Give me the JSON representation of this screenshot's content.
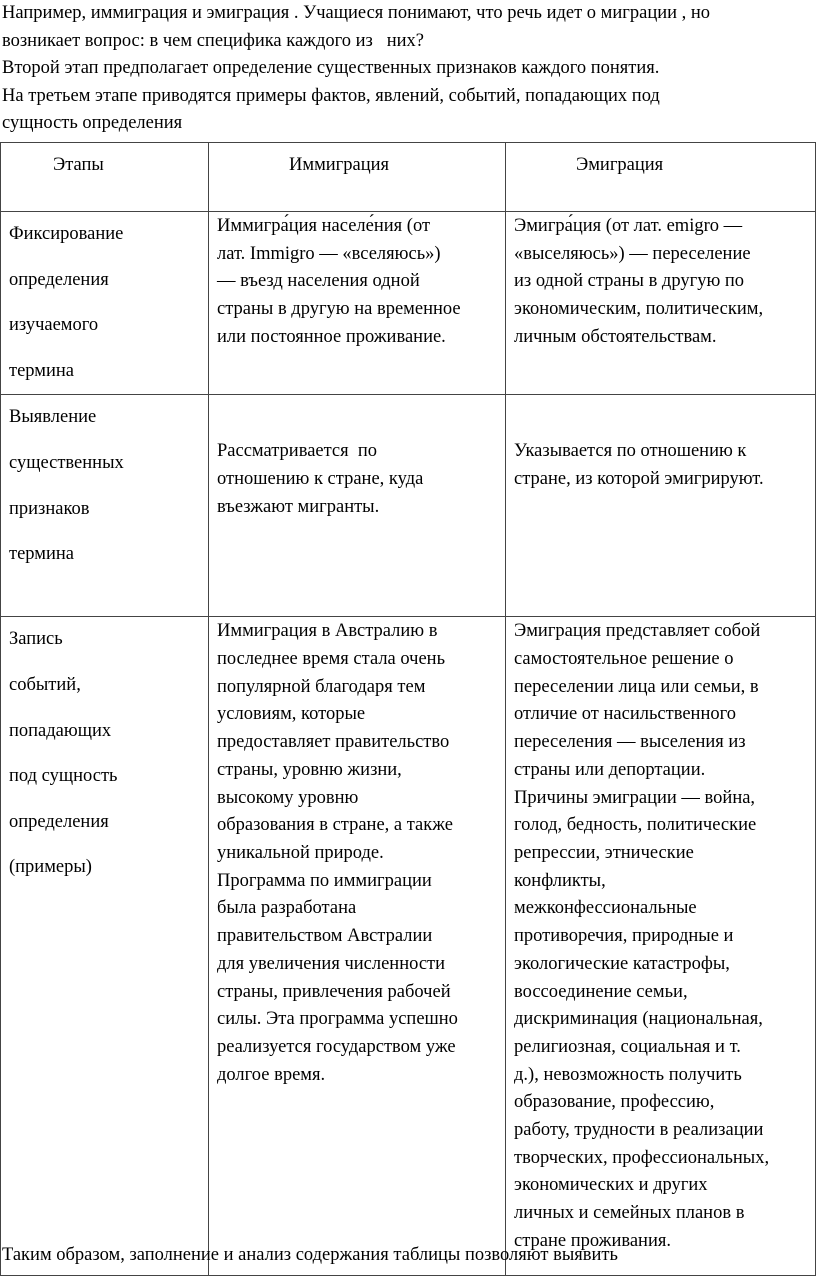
{
  "intro": [
    "Например, иммиграция и эмиграция . Учащиеся понимают, что речь идет о миграции , но",
    "возникает вопрос: в чем специфика каждого из   них?",
    "Второй этап предполагает определение существенных признаков каждого понятия.",
    "На третьем этапе приводятся примеры фактов, явлений, событий, попадающих под",
    "сущность определения"
  ],
  "table": {
    "headers": [
      "Этапы",
      "Иммиграция",
      "Эмиграция"
    ],
    "rows": [
      {
        "stage": [
          "Фиксирование",
          "определения",
          "изучаемого",
          "термина"
        ],
        "immigration": [
          "Иммигра́ция населе́ния (от",
          "лат. Immigro — «вселяюсь»)",
          "— въезд населения одной",
          "страны в другую на временное",
          "или постоянное проживание."
        ],
        "emigration": [
          "Эмигра́ция (от лат. emigro —",
          "«выселяюсь») — переселение",
          "из одной страны в другую по",
          "экономическим, политическим,",
          "личным обстоятельствам."
        ]
      },
      {
        "stage": [
          "Выявление",
          "существенных",
          "признаков",
          "термина"
        ],
        "immigration": [
          "Рассматривается  по",
          "отношению к стране, куда",
          "въезжают мигранты."
        ],
        "emigration": [
          "Указывается по отношению к",
          "стране, из которой эмигрируют."
        ]
      },
      {
        "stage": [
          "Запись",
          "событий,",
          "попадающих",
          "под сущность",
          "определения",
          "(примеры)"
        ],
        "immigration": [
          "Иммиграция в Австралию в",
          "последнее время стала очень",
          "популярной благодаря тем",
          "условиям, которые",
          "предоставляет правительство",
          "страны, уровню жизни,",
          "высокому уровню",
          "образования в стране, а также",
          "уникальной природе.",
          "Программа по иммиграции",
          "была разработана",
          "правительством Австралии",
          "для увеличения численности",
          "страны, привлечения рабочей",
          "силы. Эта программа успешно",
          "реализуется государством уже",
          "долгое время."
        ],
        "emigration": [
          "Эмиграция представляет собой",
          "самостоятельное решение о",
          "переселении лица или семьи, в",
          "отличие от насильственного",
          "переселения — выселения из",
          "страны или депортации.",
          "Причины эмиграции — война,",
          "голод, бедность, политические",
          "репрессии, этнические",
          "конфликты,",
          "межконфессиональные",
          "противоречия, природные и",
          "экологические катастрофы,",
          "воссоединение семьи,",
          "дискриминация (национальная,",
          "религиозная, социальная и т.",
          "д.), невозможность получить",
          "образование, профессию,",
          "работу, трудности в реализации",
          "творческих, профессиональных,",
          "экономических и других",
          "личных и семейных планов в",
          "стране проживания."
        ]
      }
    ]
  },
  "conclusion": "Таким образом, заполнение и анализ содержания таблицы позволяют выявить"
}
